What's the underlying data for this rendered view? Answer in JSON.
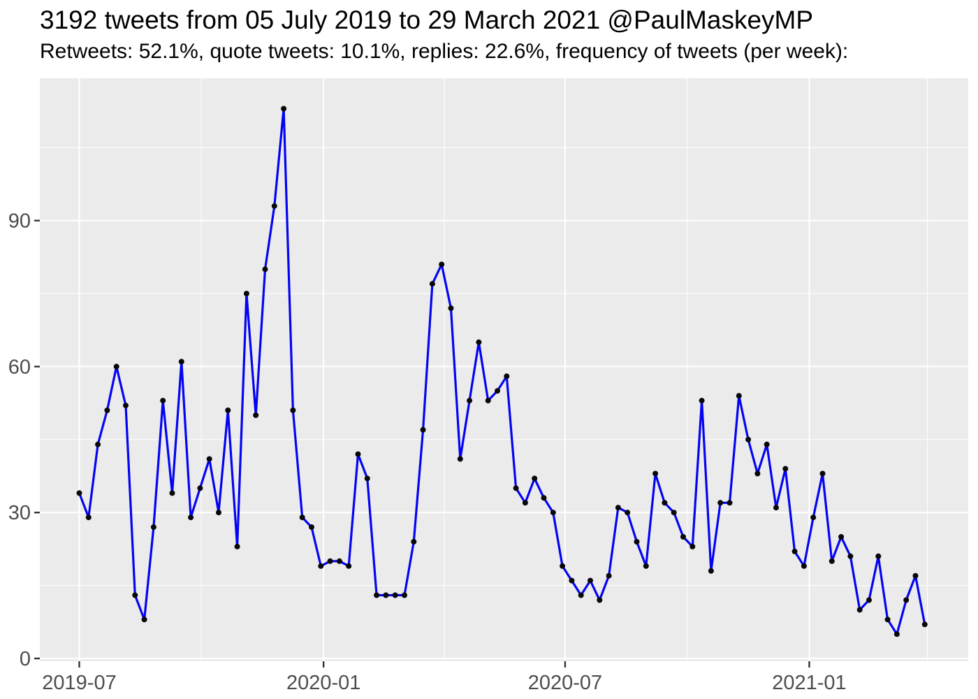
{
  "header": {
    "title": "3192 tweets from 05 July 2019 to 29 March 2021 @PaulMaskeyMP",
    "subtitle": "Retweets: 52.1%, quote tweets: 10.1%, replies: 22.6%, frequency of tweets (per week):"
  },
  "chart_data": {
    "type": "line",
    "title": "3192 tweets from 05 July 2019 to 29 March 2021 @PaulMaskeyMP",
    "subtitle": "Retweets: 52.1%, quote tweets: 10.1%, replies: 22.6%, frequency of tweets (per week):",
    "series_name": "tweets per week",
    "x_unit": "week",
    "x_first_week_label": "2019-07",
    "x_last_week_label": "2021-03",
    "values": [
      34,
      29,
      44,
      51,
      60,
      52,
      13,
      8,
      27,
      53,
      34,
      61,
      29,
      35,
      41,
      30,
      51,
      23,
      75,
      50,
      80,
      93,
      113,
      51,
      29,
      27,
      19,
      20,
      20,
      19,
      42,
      37,
      13,
      13,
      13,
      13,
      24,
      47,
      77,
      81,
      72,
      41,
      53,
      65,
      53,
      55,
      58,
      35,
      32,
      37,
      33,
      30,
      19,
      16,
      13,
      16,
      12,
      17,
      31,
      30,
      24,
      19,
      38,
      32,
      30,
      25,
      23,
      53,
      18,
      32,
      32,
      54,
      45,
      38,
      44,
      31,
      39,
      22,
      19,
      29,
      38,
      20,
      25,
      21,
      10,
      12,
      21,
      8,
      5,
      12,
      17,
      7
    ],
    "total_tweets": 3192,
    "x_tick_labels": [
      "2019-07",
      "2020-01",
      "2020-07",
      "2021-01"
    ],
    "x_tick_weeks": [
      0,
      26.29,
      52.29,
      78.57
    ],
    "x_minor_tick_weeks": [
      13.14,
      39.29,
      65.43,
      91.29
    ],
    "y_tick_labels": [
      "0",
      "30",
      "60",
      "90"
    ],
    "y_ticks": [
      0,
      30,
      60,
      90
    ],
    "y_minor_ticks": [
      15,
      45,
      75,
      105
    ],
    "ylim": [
      0,
      119
    ],
    "grid": true,
    "legend_position": "none",
    "colors": {
      "line": "#0404f2",
      "point": "#08080a",
      "panel_background": "#ebebeb",
      "grid_major": "#ffffff",
      "grid_minor": "#ffffff",
      "axis_text": "#4d4d4d",
      "tick_mark": "#333333",
      "page_background": "#ffffff",
      "title_text": "#000000"
    }
  }
}
